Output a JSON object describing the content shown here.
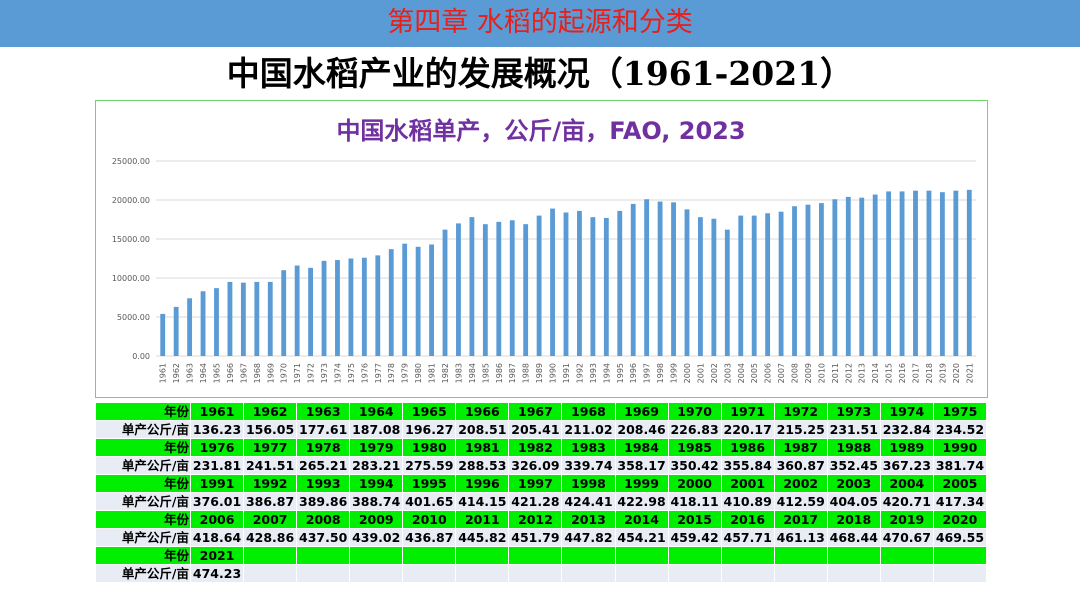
{
  "header": {
    "chapter_title": "第四章  水稻的起源和分类",
    "main_title": "中国水稻产业的发展概况（1961-2021）"
  },
  "colors": {
    "header_bar": "#5b9bd5",
    "chapter_text": "#e8201c",
    "bar": "#5b9bd5",
    "chart_title": "#7030a0",
    "table_header": "#00ee00",
    "table_body": "#e8ecf5"
  },
  "chart_data": {
    "type": "bar",
    "title": "中国水稻单产，公斤/亩，FAO, 2023",
    "xlabel": "",
    "ylabel": "",
    "ylim": [
      0,
      25000
    ],
    "yticks": [
      "25000.00",
      "20000.00",
      "15000.00",
      "10000.00",
      "5000.00",
      "0.00"
    ],
    "categories": [
      "1961",
      "1962",
      "1963",
      "1964",
      "1965",
      "1966",
      "1967",
      "1968",
      "1969",
      "1970",
      "1971",
      "1972",
      "1973",
      "1974",
      "1975",
      "1976",
      "1977",
      "1978",
      "1979",
      "1980",
      "1981",
      "1982",
      "1983",
      "1984",
      "1985",
      "1986",
      "1987",
      "1988",
      "1989",
      "1990",
      "1991",
      "1992",
      "1993",
      "1994",
      "1995",
      "1996",
      "1997",
      "1998",
      "1999",
      "2000",
      "2001",
      "2002",
      "2003",
      "2004",
      "2005",
      "2006",
      "2007",
      "2008",
      "2009",
      "2010",
      "2011",
      "2012",
      "2013",
      "2014",
      "2015",
      "2016",
      "2017",
      "2018",
      "2019",
      "2020",
      "2021"
    ],
    "values": [
      5400,
      6300,
      7400,
      8300,
      8700,
      9500,
      9400,
      9500,
      9500,
      11000,
      11600,
      11300,
      12200,
      12300,
      12500,
      12600,
      12900,
      13700,
      14400,
      14000,
      14300,
      16200,
      17000,
      17800,
      16900,
      17200,
      17400,
      16900,
      18000,
      18900,
      18400,
      18600,
      17800,
      17700,
      18600,
      19500,
      20100,
      19800,
      19700,
      18800,
      17800,
      17600,
      16200,
      18000,
      18000,
      18300,
      18500,
      19200,
      19400,
      19600,
      20100,
      20400,
      20300,
      20700,
      21100,
      21100,
      21200,
      21200,
      21000,
      21200,
      21300
    ]
  },
  "table": {
    "year_label": "年份",
    "value_label": "单产公斤/亩",
    "blocks": [
      {
        "years": [
          "1961",
          "1962",
          "1963",
          "1964",
          "1965",
          "1966",
          "1967",
          "1968",
          "1969",
          "1970",
          "1971",
          "1972",
          "1973",
          "1974",
          "1975"
        ],
        "values": [
          "136.23",
          "156.05",
          "177.61",
          "187.08",
          "196.27",
          "208.51",
          "205.41",
          "211.02",
          "208.46",
          "226.83",
          "220.17",
          "215.25",
          "231.51",
          "232.84",
          "234.52"
        ]
      },
      {
        "years": [
          "1976",
          "1977",
          "1978",
          "1979",
          "1980",
          "1981",
          "1982",
          "1983",
          "1984",
          "1985",
          "1986",
          "1987",
          "1988",
          "1989",
          "1990"
        ],
        "values": [
          "231.81",
          "241.51",
          "265.21",
          "283.21",
          "275.59",
          "288.53",
          "326.09",
          "339.74",
          "358.17",
          "350.42",
          "355.84",
          "360.87",
          "352.45",
          "367.23",
          "381.74"
        ]
      },
      {
        "years": [
          "1991",
          "1992",
          "1993",
          "1994",
          "1995",
          "1996",
          "1997",
          "1998",
          "1999",
          "2000",
          "2001",
          "2002",
          "2003",
          "2004",
          "2005"
        ],
        "values": [
          "376.01",
          "386.87",
          "389.86",
          "388.74",
          "401.65",
          "414.15",
          "421.28",
          "424.41",
          "422.98",
          "418.11",
          "410.89",
          "412.59",
          "404.05",
          "420.71",
          "417.34"
        ]
      },
      {
        "years": [
          "2006",
          "2007",
          "2008",
          "2009",
          "2010",
          "2011",
          "2012",
          "2013",
          "2014",
          "2015",
          "2016",
          "2017",
          "2018",
          "2019",
          "2020"
        ],
        "values": [
          "418.64",
          "428.86",
          "437.50",
          "439.02",
          "436.87",
          "445.82",
          "451.79",
          "447.82",
          "454.21",
          "459.42",
          "457.71",
          "461.13",
          "468.44",
          "470.67",
          "469.55"
        ]
      },
      {
        "years": [
          "2021",
          "",
          "",
          "",
          "",
          "",
          "",
          "",
          "",
          "",
          "",
          "",
          "",
          "",
          ""
        ],
        "values": [
          "474.23",
          "",
          "",
          "",
          "",
          "",
          "",
          "",
          "",
          "",
          "",
          "",
          "",
          "",
          ""
        ]
      }
    ]
  }
}
